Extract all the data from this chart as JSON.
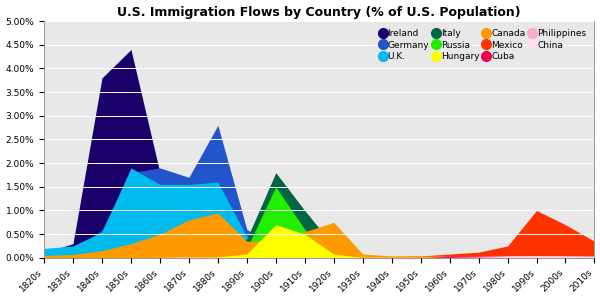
{
  "title": "U.S. Immigration Flows by Country (% of U.S. Population)",
  "decades": [
    "1820s",
    "1830s",
    "1840s",
    "1850s",
    "1860s",
    "1870s",
    "1880s",
    "1890s",
    "1900s",
    "1910s",
    "1920s",
    "1930s",
    "1940s",
    "1950s",
    "1960s",
    "1970s",
    "1980s",
    "1990s",
    "2000s",
    "2010s"
  ],
  "series": {
    "Ireland": [
      0.1,
      0.3,
      3.8,
      4.4,
      1.8,
      1.5,
      1.6,
      0.5,
      0.3,
      0.15,
      0.08,
      0.02,
      0.01,
      0.01,
      0.01,
      0.01,
      0.01,
      0.01,
      0.01,
      0.01
    ],
    "Germany": [
      0.05,
      0.08,
      0.6,
      1.8,
      1.9,
      1.7,
      2.8,
      0.6,
      0.25,
      0.15,
      0.08,
      0.01,
      0.01,
      0.01,
      0.01,
      0.01,
      0.01,
      0.01,
      0.01,
      0.01
    ],
    "U.K.": [
      0.2,
      0.25,
      0.55,
      1.9,
      1.55,
      1.55,
      1.6,
      0.45,
      0.28,
      0.18,
      0.08,
      0.02,
      0.02,
      0.03,
      0.03,
      0.03,
      0.03,
      0.03,
      0.02,
      0.02
    ],
    "Italy": [
      0.0,
      0.0,
      0.0,
      0.01,
      0.01,
      0.01,
      0.04,
      0.4,
      1.8,
      1.0,
      0.25,
      0.02,
      0.01,
      0.01,
      0.02,
      0.02,
      0.01,
      0.01,
      0.01,
      0.01
    ],
    "Russia": [
      0.0,
      0.0,
      0.0,
      0.0,
      0.01,
      0.01,
      0.03,
      0.2,
      1.5,
      0.6,
      0.08,
      0.01,
      0.01,
      0.01,
      0.01,
      0.01,
      0.01,
      0.01,
      0.01,
      0.01
    ],
    "Hungary": [
      0.0,
      0.0,
      0.0,
      0.0,
      0.0,
      0.0,
      0.02,
      0.08,
      0.7,
      0.5,
      0.08,
      0.01,
      0.01,
      0.01,
      0.01,
      0.01,
      0.01,
      0.01,
      0.01,
      0.01
    ],
    "Canada": [
      0.05,
      0.07,
      0.15,
      0.3,
      0.5,
      0.8,
      0.95,
      0.35,
      0.35,
      0.55,
      0.75,
      0.08,
      0.04,
      0.04,
      0.04,
      0.04,
      0.04,
      0.04,
      0.03,
      0.02
    ],
    "Mexico": [
      0.0,
      0.0,
      0.0,
      0.0,
      0.01,
      0.01,
      0.01,
      0.01,
      0.02,
      0.04,
      0.08,
      0.04,
      0.03,
      0.04,
      0.08,
      0.12,
      0.25,
      1.0,
      0.7,
      0.35
    ],
    "Cuba": [
      0.0,
      0.0,
      0.0,
      0.0,
      0.0,
      0.0,
      0.0,
      0.0,
      0.0,
      0.0,
      0.0,
      0.0,
      0.0,
      0.0,
      0.04,
      0.04,
      0.03,
      0.02,
      0.01,
      0.01
    ],
    "Philippines": [
      0.0,
      0.0,
      0.0,
      0.0,
      0.0,
      0.0,
      0.0,
      0.0,
      0.0,
      0.0,
      0.0,
      0.0,
      0.0,
      0.01,
      0.01,
      0.04,
      0.05,
      0.05,
      0.04,
      0.04
    ],
    "China": [
      0.0,
      0.0,
      0.0,
      0.0,
      0.01,
      0.02,
      0.01,
      0.01,
      0.01,
      0.01,
      0.01,
      0.01,
      0.01,
      0.01,
      0.01,
      0.02,
      0.03,
      0.04,
      0.04,
      0.03
    ]
  },
  "colors": {
    "Ireland": "#1a006b",
    "Germany": "#2255cc",
    "U.K.": "#00bbee",
    "Italy": "#006644",
    "Russia": "#22ee00",
    "Hungary": "#ffff00",
    "Canada": "#ff9900",
    "Mexico": "#ff3300",
    "Cuba": "#ee0055",
    "Philippines": "#ffaacc",
    "China": "#ffddee"
  },
  "ylim_max": 5.0,
  "ytick_vals": [
    0.0,
    0.5,
    1.0,
    1.5,
    2.0,
    2.5,
    3.0,
    3.5,
    4.0,
    4.5,
    5.0
  ],
  "ytick_labels": [
    "0.00%",
    "0.50%",
    "1.00%",
    "1.50%",
    "2.00%",
    "2.50%",
    "3.00%",
    "3.50%",
    "4.00%",
    "4.50%",
    "5.00%"
  ],
  "bg_color": "#e8e8e8"
}
